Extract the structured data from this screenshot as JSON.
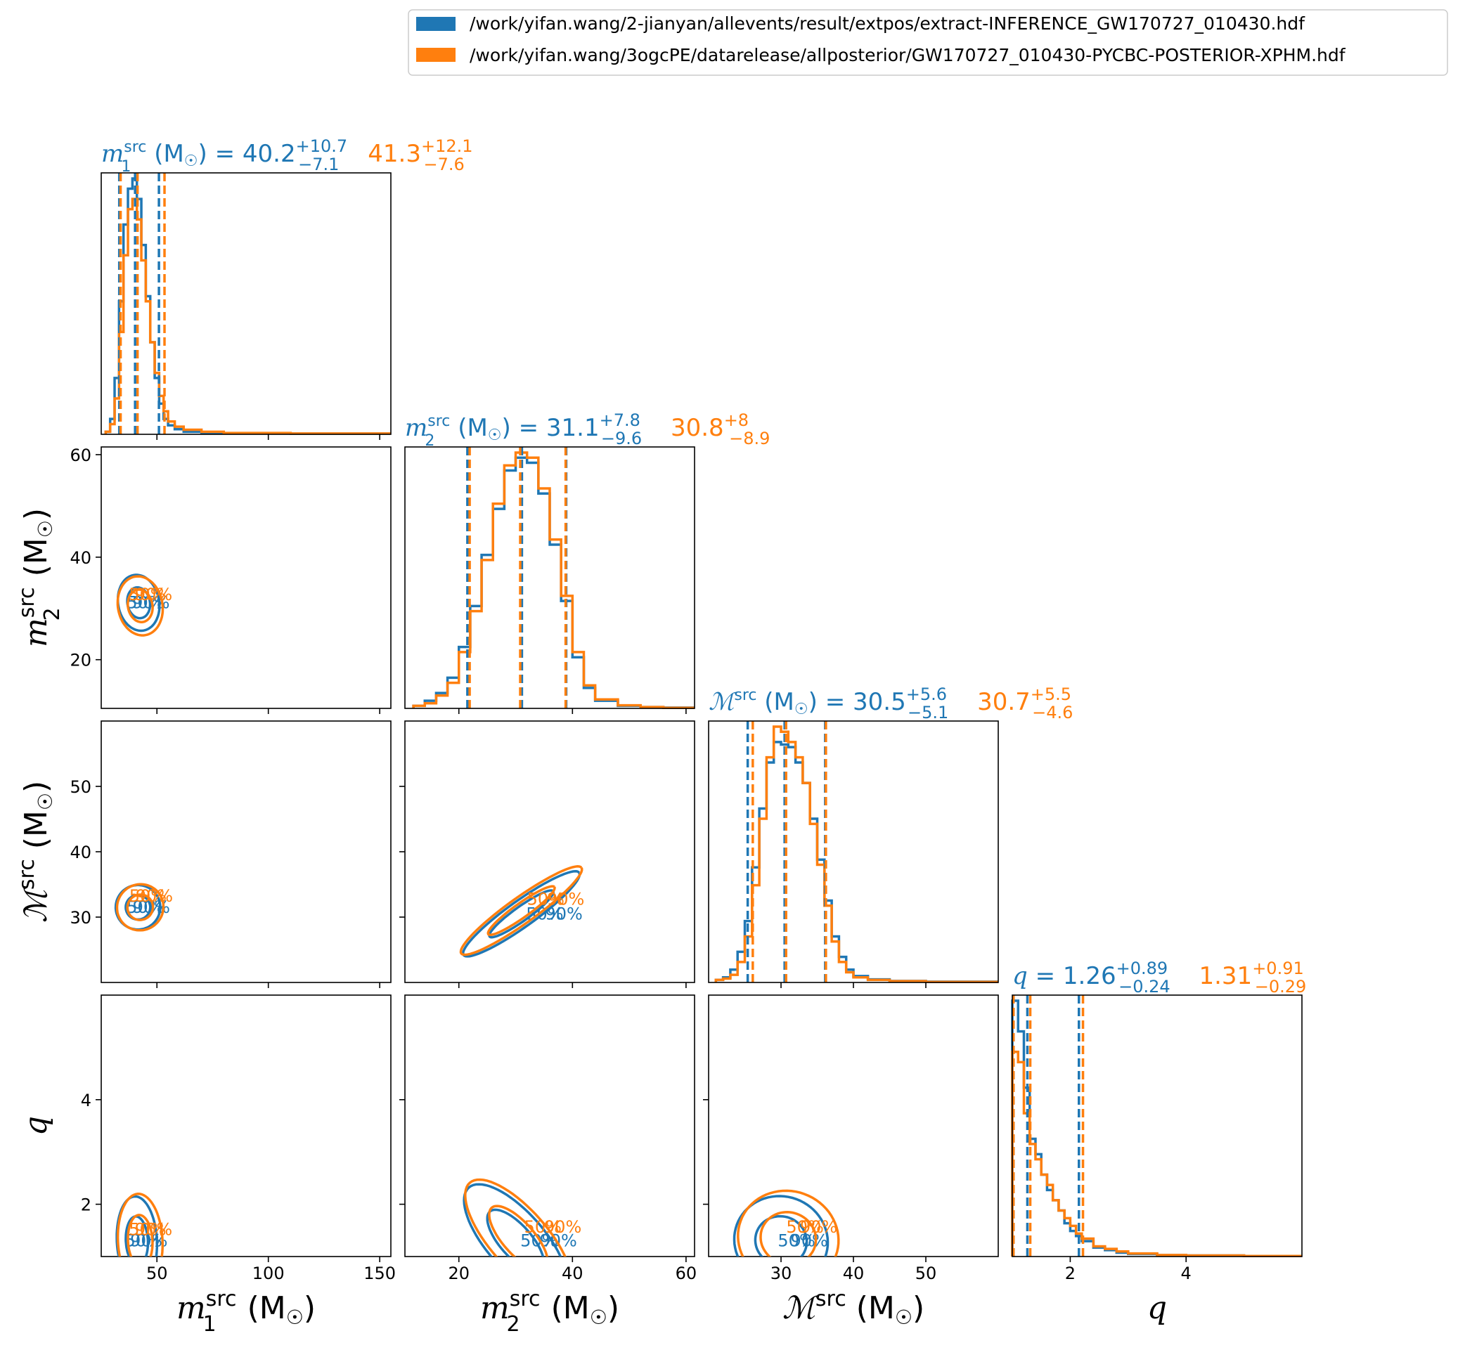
{
  "colors": {
    "blue": "#1f77b4",
    "orange": "#ff7f0e",
    "axis": "#000000"
  },
  "legend": {
    "placement": "top-right",
    "entries": [
      {
        "label": "/work/yifan.wang/2-jianyan/allevents/result/extpos/extract-INFERENCE_GW170727_010430.hdf",
        "color": "#1f77b4"
      },
      {
        "label": "/work/yifan.wang/3ogcPE/datarelease/allposterior/GW170727_010430-PYCBC-POSTERIOR-XPHM.hdf",
        "color": "#ff7f0e"
      }
    ]
  },
  "chart_data": {
    "type": "corner",
    "grid": false,
    "parameters": [
      {
        "key": "m1",
        "symbol": "m",
        "sub": "1",
        "sup": "src",
        "unit": "(M",
        "range": [
          25,
          155
        ],
        "ticks": [
          50,
          100,
          150
        ],
        "axis_label": {
          "sym": "m",
          "sub": "1",
          "sup": "src",
          "unit": "(M",
          "sun": "☉",
          "close": ")"
        },
        "summary": [
          {
            "median": "40.2",
            "plus": "+10.7",
            "minus": "−7.1",
            "color": "#1f77b4"
          },
          {
            "median": "41.3",
            "plus": "+12.1",
            "minus": "−7.6",
            "color": "#ff7f0e"
          }
        ],
        "quantiles": [
          [
            33.1,
            40.2,
            50.9
          ],
          [
            33.7,
            41.3,
            53.4
          ]
        ],
        "hist": [
          {
            "x": [
              27,
              29,
              31,
              33,
              35,
              37,
              39,
              41,
              43,
              45,
              47,
              49,
              51,
              53,
              55,
              58,
              62,
              70,
              80,
              110,
              155
            ],
            "y": [
              0.01,
              0.06,
              0.22,
              0.52,
              0.82,
              0.96,
              1.0,
              0.92,
              0.74,
              0.54,
              0.36,
              0.22,
              0.12,
              0.06,
              0.035,
              0.02,
              0.01,
              0.006,
              0.004,
              0.003,
              0.0
            ]
          },
          {
            "x": [
              27,
              29,
              31,
              33,
              35,
              37,
              39,
              41,
              43,
              45,
              47,
              49,
              51,
              53,
              55,
              58,
              62,
              70,
              80,
              110,
              155
            ],
            "y": [
              0.01,
              0.04,
              0.14,
              0.4,
              0.7,
              0.88,
              0.92,
              0.84,
              0.68,
              0.52,
              0.36,
              0.24,
              0.15,
              0.09,
              0.05,
              0.03,
              0.018,
              0.01,
              0.005,
              0.003,
              0.0
            ]
          }
        ]
      },
      {
        "key": "m2",
        "symbol": "m",
        "sub": "2",
        "sup": "src",
        "unit": "(M",
        "range": [
          10.5,
          61.5
        ],
        "ticks": [
          20,
          40,
          60
        ],
        "axis_label": {
          "sym": "m",
          "sub": "2",
          "sup": "src",
          "unit": "(M",
          "sun": "☉",
          "close": ")"
        },
        "summary": [
          {
            "median": "31.1",
            "plus": "+7.8",
            "minus": "−9.6",
            "color": "#1f77b4"
          },
          {
            "median": "30.8",
            "plus": "+8",
            "minus": "−8.9",
            "color": "#ff7f0e"
          }
        ],
        "quantiles": [
          [
            21.5,
            31.1,
            38.9
          ],
          [
            21.9,
            30.8,
            38.8
          ]
        ],
        "hist": [
          {
            "x": [
              12,
              14,
              16,
              18,
              20,
              22,
              24,
              26,
              28,
              30,
              32,
              34,
              36,
              38,
              40,
              42,
              44,
              48,
              52,
              56,
              61.5
            ],
            "y": [
              0.01,
              0.03,
              0.06,
              0.12,
              0.24,
              0.4,
              0.6,
              0.78,
              0.93,
              0.98,
              0.96,
              0.84,
              0.64,
              0.42,
              0.2,
              0.08,
              0.03,
              0.01,
              0.005,
              0.003,
              0.0
            ]
          },
          {
            "x": [
              12,
              14,
              16,
              18,
              20,
              22,
              24,
              26,
              28,
              30,
              32,
              34,
              36,
              38,
              40,
              42,
              44,
              48,
              52,
              56,
              61.5
            ],
            "y": [
              0.01,
              0.02,
              0.05,
              0.1,
              0.22,
              0.38,
              0.58,
              0.8,
              0.95,
              1.0,
              0.98,
              0.86,
              0.66,
              0.44,
              0.22,
              0.09,
              0.035,
              0.012,
              0.005,
              0.002,
              0.0
            ]
          }
        ]
      },
      {
        "key": "mchirp",
        "symbol": "ℳ",
        "sub": "",
        "sup": "src",
        "unit": "(M",
        "range": [
          20,
          60
        ],
        "ticks": [
          30,
          40,
          50
        ],
        "axis_label": {
          "sym": "ℳ",
          "sub": "",
          "sup": "src",
          "unit": "(M",
          "sun": "☉",
          "close": ")"
        },
        "summary": [
          {
            "median": "30.5",
            "plus": "+5.6",
            "minus": "−5.1",
            "color": "#1f77b4"
          },
          {
            "median": "30.7",
            "plus": "+5.5",
            "minus": "−4.6",
            "color": "#ff7f0e"
          }
        ],
        "quantiles": [
          [
            25.4,
            30.5,
            36.1
          ],
          [
            26.1,
            30.7,
            36.2
          ]
        ],
        "hist": [
          {
            "x": [
              21,
              22,
              23,
              24,
              25,
              26,
              27,
              28,
              29,
              30,
              31,
              32,
              33,
              34,
              35,
              36,
              37,
              38,
              39,
              40,
              42,
              45,
              50,
              60
            ],
            "y": [
              0.01,
              0.02,
              0.05,
              0.12,
              0.24,
              0.45,
              0.68,
              0.86,
              0.94,
              0.93,
              0.92,
              0.86,
              0.78,
              0.64,
              0.48,
              0.32,
              0.18,
              0.1,
              0.05,
              0.025,
              0.012,
              0.006,
              0.003,
              0.0
            ]
          },
          {
            "x": [
              21,
              22,
              23,
              24,
              25,
              26,
              27,
              28,
              29,
              30,
              31,
              32,
              33,
              34,
              35,
              36,
              37,
              38,
              39,
              40,
              42,
              45,
              50,
              60
            ],
            "y": [
              0.01,
              0.015,
              0.03,
              0.08,
              0.18,
              0.38,
              0.64,
              0.88,
              1.0,
              0.98,
              0.94,
              0.88,
              0.78,
              0.62,
              0.46,
              0.3,
              0.16,
              0.08,
              0.04,
              0.02,
              0.01,
              0.005,
              0.002,
              0.0
            ]
          }
        ]
      },
      {
        "key": "q",
        "symbol": "q",
        "sub": "",
        "sup": "",
        "unit": "",
        "range": [
          1,
          6
        ],
        "ticks": [
          2,
          4
        ],
        "axis_label": {
          "sym": "q",
          "sub": "",
          "sup": "",
          "unit": "",
          "sun": "",
          "close": ""
        },
        "summary": [
          {
            "median": "1.26",
            "plus": "+0.89",
            "minus": "−0.24",
            "color": "#1f77b4"
          },
          {
            "median": "1.31",
            "plus": "+0.91",
            "minus": "−0.29",
            "color": "#ff7f0e"
          }
        ],
        "quantiles": [
          [
            1.02,
            1.26,
            2.15
          ],
          [
            1.02,
            1.31,
            2.22
          ]
        ],
        "hist": [
          {
            "x": [
              1.0,
              1.1,
              1.2,
              1.3,
              1.4,
              1.5,
              1.6,
              1.7,
              1.8,
              1.9,
              2.0,
              2.1,
              2.2,
              2.4,
              2.6,
              2.8,
              3.0,
              3.5,
              4.0,
              5.0,
              6.0
            ],
            "y": [
              1.0,
              0.88,
              0.66,
              0.46,
              0.4,
              0.32,
              0.26,
              0.22,
              0.18,
              0.13,
              0.1,
              0.08,
              0.06,
              0.035,
              0.025,
              0.015,
              0.01,
              0.006,
              0.004,
              0.002,
              0.0
            ]
          },
          {
            "x": [
              1.0,
              1.1,
              1.2,
              1.3,
              1.4,
              1.5,
              1.6,
              1.7,
              1.8,
              1.9,
              2.0,
              2.1,
              2.2,
              2.4,
              2.6,
              2.8,
              3.0,
              3.5,
              4.0,
              5.0,
              6.0
            ],
            "y": [
              0.8,
              0.76,
              0.56,
              0.44,
              0.38,
              0.32,
              0.28,
              0.22,
              0.18,
              0.15,
              0.12,
              0.09,
              0.07,
              0.04,
              0.03,
              0.02,
              0.012,
              0.006,
              0.004,
              0.002,
              0.0
            ]
          }
        ]
      }
    ],
    "contours": [
      {
        "x": 0,
        "y": 1,
        "centers": [
          [
            41.8,
            31.1
          ],
          [
            42.5,
            30.5
          ]
        ],
        "axes": [
          [
            9.2,
            5.5
          ],
          [
            10.0,
            5.8
          ]
        ],
        "angle": 0.18,
        "labels": [
          "50%",
          "90%"
        ]
      },
      {
        "x": 0,
        "y": 2,
        "centers": [
          [
            41.5,
            31.5
          ],
          [
            42.5,
            31.5
          ]
        ],
        "axes": [
          [
            10.0,
            3.4
          ],
          [
            10.5,
            3.5
          ]
        ],
        "angle": 0.65,
        "labels": [
          "50%",
          "90%"
        ]
      },
      {
        "x": 1,
        "y": 2,
        "centers": [
          [
            31.0,
            30.5
          ],
          [
            31.0,
            31.0
          ]
        ],
        "axes": [
          [
            12.5,
            2.0
          ],
          [
            13.0,
            2.0
          ]
        ],
        "angle": 0.62,
        "labels": [
          "50%",
          "90%"
        ]
      },
      {
        "x": 0,
        "y": 3,
        "centers": [
          [
            41.0,
            1.3
          ],
          [
            42.5,
            1.3
          ]
        ],
        "axes": [
          [
            9.0,
            0.85
          ],
          [
            10.0,
            0.9
          ]
        ],
        "angle": 0.05,
        "labels": [
          "50%",
          "90%"
        ]
      },
      {
        "x": 1,
        "y": 3,
        "centers": [
          [
            30.0,
            1.3
          ],
          [
            30.5,
            1.35
          ]
        ],
        "axes": [
          [
            12.5,
            0.55
          ],
          [
            13.0,
            0.55
          ]
        ],
        "angle": -0.85,
        "labels": [
          "50%",
          "90%"
        ]
      },
      {
        "x": 2,
        "y": 3,
        "centers": [
          [
            30.0,
            1.3
          ],
          [
            31.0,
            1.35
          ]
        ],
        "axes": [
          [
            6.5,
            0.85
          ],
          [
            7.0,
            0.9
          ]
        ],
        "angle": -0.35,
        "labels": [
          "50%",
          "90%"
        ]
      }
    ],
    "contour_levels": [
      "50%",
      "90%"
    ]
  }
}
